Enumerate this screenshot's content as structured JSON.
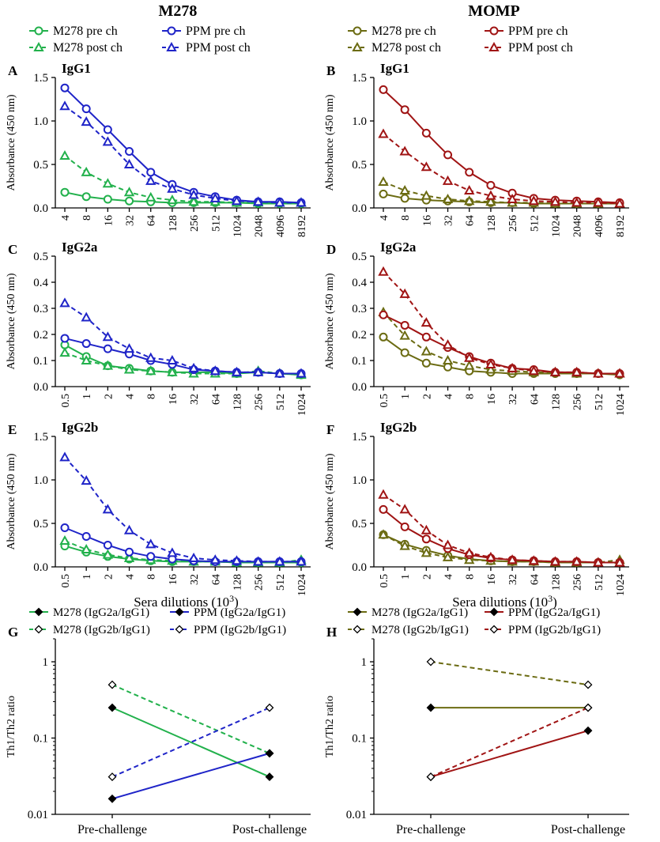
{
  "figure": {
    "column_titles": [
      "M278",
      "MOMP"
    ],
    "x_axis_label": "Sera dilutions (10",
    "x_axis_label_sup": "3",
    "x_axis_label_end": ")"
  },
  "legends": {
    "top_left": [
      "M278 pre ch",
      "M278 post ch",
      "PPM pre ch",
      "PPM post ch"
    ],
    "top_right": [
      "M278 pre ch",
      "M278 post ch",
      "PPM pre ch",
      "PPM post ch"
    ],
    "bottom_left": [
      "M278 (IgG2a/IgG1)",
      "M278 (IgG2b/IgG1)",
      "PPM (IgG2a/IgG1)",
      "PPM (IgG2b/IgG1)"
    ],
    "bottom_right": [
      "M278 (IgG2a/IgG1)",
      "M278 (IgG2b/IgG1)",
      "PPM (IgG2a/IgG1)",
      "PPM (IgG2b/IgG1)"
    ]
  },
  "colors": {
    "green": "#22b14c",
    "blue": "#1f24c8",
    "olive": "#6b6b12",
    "darkred": "#a01414"
  },
  "chart_data": [
    {
      "panel": "A",
      "title": "IgG1",
      "type": "line",
      "ylabel": "Absorbance (450 nm)",
      "categories": [
        "4",
        "8",
        "16",
        "32",
        "64",
        "128",
        "256",
        "512",
        "1024",
        "2048",
        "4096",
        "8192"
      ],
      "ylim": [
        0,
        1.5
      ],
      "yticks": [
        0,
        0.5,
        1.0,
        1.5
      ],
      "ytick_labels": [
        "0.0",
        "0.5",
        "1.0",
        "1.5"
      ],
      "series": [
        {
          "name": "M278 pre ch",
          "color": "green",
          "marker": "circle",
          "dashed": false,
          "values": [
            0.18,
            0.13,
            0.1,
            0.08,
            0.07,
            0.06,
            0.06,
            0.06,
            0.06,
            0.05,
            0.05,
            0.05
          ]
        },
        {
          "name": "M278 post ch",
          "color": "green",
          "marker": "triangle",
          "dashed": true,
          "values": [
            0.6,
            0.41,
            0.28,
            0.18,
            0.12,
            0.09,
            0.07,
            0.07,
            0.06,
            0.06,
            0.06,
            0.06
          ]
        },
        {
          "name": "PPM pre ch",
          "color": "blue",
          "marker": "circle",
          "dashed": false,
          "values": [
            1.38,
            1.14,
            0.9,
            0.65,
            0.41,
            0.27,
            0.18,
            0.13,
            0.09,
            0.07,
            0.07,
            0.06
          ]
        },
        {
          "name": "PPM post ch",
          "color": "blue",
          "marker": "triangle",
          "dashed": true,
          "values": [
            1.17,
            0.99,
            0.76,
            0.5,
            0.31,
            0.22,
            0.15,
            0.11,
            0.08,
            0.07,
            0.06,
            0.06
          ]
        }
      ]
    },
    {
      "panel": "B",
      "title": "IgG1",
      "type": "line",
      "ylabel": "Absorbance (450 nm)",
      "categories": [
        "4",
        "8",
        "16",
        "32",
        "64",
        "128",
        "256",
        "512",
        "1024",
        "2048",
        "4096",
        "8192"
      ],
      "ylim": [
        0,
        1.5
      ],
      "yticks": [
        0,
        0.5,
        1.0,
        1.5
      ],
      "ytick_labels": [
        "0.0",
        "0.5",
        "1.0",
        "1.5"
      ],
      "series": [
        {
          "name": "M278 pre ch",
          "color": "olive",
          "marker": "circle",
          "dashed": false,
          "values": [
            0.16,
            0.11,
            0.09,
            0.08,
            0.07,
            0.06,
            0.06,
            0.05,
            0.05,
            0.05,
            0.05,
            0.05
          ]
        },
        {
          "name": "M278 post ch",
          "color": "olive",
          "marker": "triangle",
          "dashed": true,
          "values": [
            0.3,
            0.2,
            0.14,
            0.1,
            0.08,
            0.07,
            0.06,
            0.06,
            0.05,
            0.05,
            0.05,
            0.05
          ]
        },
        {
          "name": "PPM pre ch",
          "color": "darkred",
          "marker": "circle",
          "dashed": false,
          "values": [
            1.36,
            1.13,
            0.86,
            0.61,
            0.41,
            0.26,
            0.17,
            0.11,
            0.09,
            0.08,
            0.07,
            0.06
          ]
        },
        {
          "name": "PPM post ch",
          "color": "darkred",
          "marker": "triangle",
          "dashed": true,
          "values": [
            0.85,
            0.65,
            0.47,
            0.31,
            0.2,
            0.14,
            0.1,
            0.08,
            0.07,
            0.06,
            0.06,
            0.05
          ]
        }
      ]
    },
    {
      "panel": "C",
      "title": "IgG2a",
      "type": "line",
      "ylabel": "Absorbance (450 nm)",
      "categories": [
        "0.5",
        "1",
        "2",
        "4",
        "8",
        "16",
        "32",
        "64",
        "128",
        "256",
        "512",
        "1024"
      ],
      "ylim": [
        0,
        0.5
      ],
      "yticks": [
        0,
        0.1,
        0.2,
        0.3,
        0.4,
        0.5
      ],
      "ytick_labels": [
        "0.0",
        "0.1",
        "0.2",
        "0.3",
        "0.4",
        "0.5"
      ],
      "series": [
        {
          "name": "M278 pre ch",
          "color": "green",
          "marker": "circle",
          "dashed": false,
          "values": [
            0.16,
            0.115,
            0.08,
            0.07,
            0.06,
            0.055,
            0.055,
            0.055,
            0.05,
            0.055,
            0.05,
            0.045
          ]
        },
        {
          "name": "M278 post ch",
          "color": "green",
          "marker": "triangle",
          "dashed": true,
          "values": [
            0.13,
            0.1,
            0.08,
            0.065,
            0.06,
            0.055,
            0.05,
            0.05,
            0.05,
            0.06,
            0.05,
            0.045
          ]
        },
        {
          "name": "PPM pre ch",
          "color": "blue",
          "marker": "circle",
          "dashed": false,
          "values": [
            0.185,
            0.165,
            0.145,
            0.125,
            0.1,
            0.085,
            0.065,
            0.06,
            0.055,
            0.055,
            0.05,
            0.05
          ]
        },
        {
          "name": "PPM post ch",
          "color": "blue",
          "marker": "triangle",
          "dashed": true,
          "values": [
            0.32,
            0.265,
            0.19,
            0.145,
            0.11,
            0.1,
            0.07,
            0.06,
            0.055,
            0.055,
            0.05,
            0.05
          ]
        }
      ]
    },
    {
      "panel": "D",
      "title": "IgG2a",
      "type": "line",
      "ylabel": "Absorbance (450 nm)",
      "categories": [
        "0.5",
        "1",
        "2",
        "4",
        "8",
        "16",
        "32",
        "64",
        "128",
        "256",
        "512",
        "1024"
      ],
      "ylim": [
        0,
        0.5
      ],
      "yticks": [
        0,
        0.1,
        0.2,
        0.3,
        0.4,
        0.5
      ],
      "ytick_labels": [
        "0.0",
        "0.1",
        "0.2",
        "0.3",
        "0.4",
        "0.5"
      ],
      "series": [
        {
          "name": "M278 pre ch",
          "color": "olive",
          "marker": "circle",
          "dashed": false,
          "values": [
            0.19,
            0.13,
            0.09,
            0.075,
            0.06,
            0.055,
            0.05,
            0.05,
            0.05,
            0.05,
            0.05,
            0.045
          ]
        },
        {
          "name": "M278 post ch",
          "color": "olive",
          "marker": "triangle",
          "dashed": true,
          "values": [
            0.285,
            0.195,
            0.135,
            0.1,
            0.08,
            0.065,
            0.06,
            0.055,
            0.055,
            0.05,
            0.05,
            0.05
          ]
        },
        {
          "name": "PPM pre ch",
          "color": "darkred",
          "marker": "circle",
          "dashed": false,
          "values": [
            0.275,
            0.235,
            0.19,
            0.15,
            0.115,
            0.09,
            0.07,
            0.065,
            0.055,
            0.055,
            0.05,
            0.05
          ]
        },
        {
          "name": "PPM post ch",
          "color": "darkred",
          "marker": "triangle",
          "dashed": true,
          "values": [
            0.44,
            0.355,
            0.245,
            0.16,
            0.11,
            0.085,
            0.07,
            0.06,
            0.055,
            0.055,
            0.05,
            0.05
          ]
        }
      ]
    },
    {
      "panel": "E",
      "title": "IgG2b",
      "type": "line",
      "ylabel": "Absorbance (450 nm)",
      "xlabel": "Sera dilutions (10^3)",
      "categories": [
        "0.5",
        "1",
        "2",
        "4",
        "8",
        "16",
        "32",
        "64",
        "128",
        "256",
        "512",
        "1024"
      ],
      "ylim": [
        0,
        1.5
      ],
      "yticks": [
        0,
        0.5,
        1.0,
        1.5
      ],
      "ytick_labels": [
        "0.0",
        "0.5",
        "1.0",
        "1.5"
      ],
      "series": [
        {
          "name": "M278 pre ch",
          "color": "green",
          "marker": "circle",
          "dashed": false,
          "values": [
            0.24,
            0.17,
            0.12,
            0.09,
            0.07,
            0.06,
            0.06,
            0.06,
            0.05,
            0.05,
            0.05,
            0.05
          ]
        },
        {
          "name": "M278 post ch",
          "color": "green",
          "marker": "triangle",
          "dashed": true,
          "values": [
            0.3,
            0.2,
            0.14,
            0.1,
            0.08,
            0.07,
            0.06,
            0.06,
            0.05,
            0.05,
            0.05,
            0.08
          ]
        },
        {
          "name": "PPM pre ch",
          "color": "blue",
          "marker": "circle",
          "dashed": false,
          "values": [
            0.45,
            0.35,
            0.25,
            0.17,
            0.12,
            0.09,
            0.07,
            0.06,
            0.06,
            0.06,
            0.06,
            0.06
          ]
        },
        {
          "name": "PPM post ch",
          "color": "blue",
          "marker": "triangle",
          "dashed": true,
          "values": [
            1.26,
            0.99,
            0.66,
            0.42,
            0.26,
            0.16,
            0.1,
            0.08,
            0.07,
            0.06,
            0.06,
            0.06
          ]
        }
      ]
    },
    {
      "panel": "F",
      "title": "IgG2b",
      "type": "line",
      "ylabel": "Absorbance (450 nm)",
      "xlabel": "Sera dilutions (10^3)",
      "categories": [
        "0.5",
        "1",
        "2",
        "4",
        "8",
        "16",
        "32",
        "64",
        "128",
        "256",
        "512",
        "1024"
      ],
      "ylim": [
        0,
        1.5
      ],
      "yticks": [
        0,
        0.5,
        1.0,
        1.5
      ],
      "ytick_labels": [
        "0.0",
        "0.5",
        "1.0",
        "1.5"
      ],
      "series": [
        {
          "name": "M278 pre ch",
          "color": "olive",
          "marker": "circle",
          "dashed": false,
          "values": [
            0.37,
            0.26,
            0.19,
            0.13,
            0.09,
            0.07,
            0.06,
            0.06,
            0.05,
            0.05,
            0.05,
            0.05
          ]
        },
        {
          "name": "M278 post ch",
          "color": "olive",
          "marker": "triangle",
          "dashed": true,
          "values": [
            0.37,
            0.24,
            0.16,
            0.11,
            0.08,
            0.07,
            0.06,
            0.06,
            0.05,
            0.05,
            0.05,
            0.08
          ]
        },
        {
          "name": "PPM pre ch",
          "color": "darkred",
          "marker": "circle",
          "dashed": false,
          "values": [
            0.66,
            0.46,
            0.32,
            0.21,
            0.14,
            0.1,
            0.08,
            0.07,
            0.06,
            0.06,
            0.05,
            0.05
          ]
        },
        {
          "name": "PPM post ch",
          "color": "darkred",
          "marker": "triangle",
          "dashed": true,
          "values": [
            0.83,
            0.66,
            0.42,
            0.25,
            0.16,
            0.11,
            0.08,
            0.07,
            0.06,
            0.06,
            0.05,
            0.05
          ]
        }
      ]
    },
    {
      "panel": "G",
      "type": "line",
      "ylabel": "Th1/Th2 ratio",
      "yscale": "log",
      "categories": [
        "Pre-challenge",
        "Post-challenge"
      ],
      "ylim": [
        0.01,
        2
      ],
      "yticks": [
        0.01,
        0.1,
        1
      ],
      "ytick_labels": [
        "0.01",
        "0.1",
        "1"
      ],
      "series": [
        {
          "name": "M278 (IgG2a/IgG1)",
          "color": "green",
          "marker": "diamond-filled",
          "dashed": false,
          "values": [
            0.25,
            0.031
          ]
        },
        {
          "name": "M278 (IgG2b/IgG1)",
          "color": "green",
          "marker": "diamond-open",
          "dashed": true,
          "values": [
            0.5,
            0.063
          ]
        },
        {
          "name": "PPM (IgG2a/IgG1)",
          "color": "blue",
          "marker": "diamond-filled",
          "dashed": false,
          "values": [
            0.016,
            0.063
          ]
        },
        {
          "name": "PPM (IgG2b/IgG1)",
          "color": "blue",
          "marker": "diamond-open",
          "dashed": true,
          "values": [
            0.031,
            0.25
          ]
        }
      ]
    },
    {
      "panel": "H",
      "type": "line",
      "ylabel": "Th1/Th2 ratio",
      "yscale": "log",
      "categories": [
        "Pre-challenge",
        "Post-challenge"
      ],
      "ylim": [
        0.01,
        2
      ],
      "yticks": [
        0.01,
        0.1,
        1
      ],
      "ytick_labels": [
        "0.01",
        "0.1",
        "1"
      ],
      "series": [
        {
          "name": "M278 (IgG2a/IgG1)",
          "color": "olive",
          "marker": "diamond-filled",
          "dashed": false,
          "values": [
            0.25,
            0.25
          ]
        },
        {
          "name": "M278 (IgG2b/IgG1)",
          "color": "olive",
          "marker": "diamond-open",
          "dashed": true,
          "values": [
            1.0,
            0.5
          ]
        },
        {
          "name": "PPM (IgG2a/IgG1)",
          "color": "darkred",
          "marker": "diamond-filled",
          "dashed": false,
          "values": [
            0.031,
            0.125
          ]
        },
        {
          "name": "PPM (IgG2b/IgG1)",
          "color": "darkred",
          "marker": "diamond-open",
          "dashed": true,
          "values": [
            0.031,
            0.25
          ]
        }
      ]
    }
  ]
}
